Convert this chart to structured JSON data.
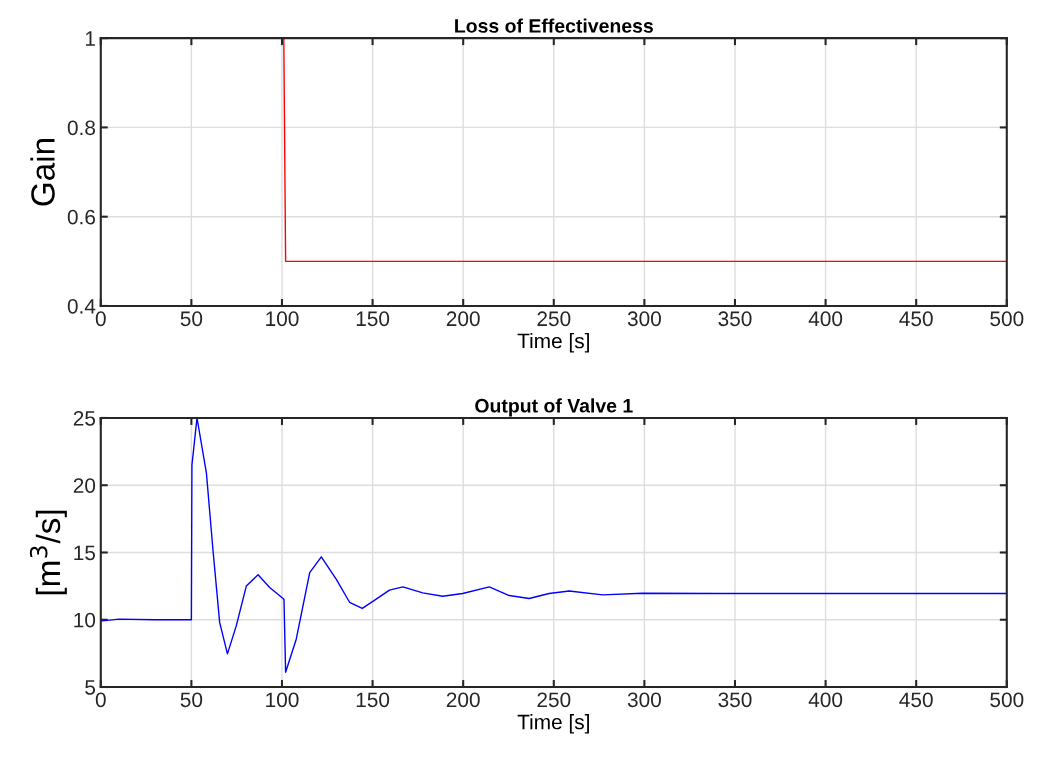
{
  "chart_data": [
    {
      "type": "line",
      "title": "Loss of Effectiveness",
      "xlabel": "Time [s]",
      "ylabel": "Gain",
      "xlim": [
        0,
        500
      ],
      "ylim": [
        0.4,
        1
      ],
      "xticks": [
        0,
        50,
        100,
        150,
        200,
        250,
        300,
        350,
        400,
        450,
        500
      ],
      "yticks": [
        0.4,
        0.6,
        0.8,
        1
      ],
      "grid": true,
      "series": [
        {
          "color": "#ff0000",
          "x": [
            0,
            101,
            102,
            500
          ],
          "values": [
            1,
            1,
            0.5,
            0.5
          ]
        }
      ]
    },
    {
      "type": "line",
      "title": "Output of Valve 1",
      "xlabel": "Time [s]",
      "ylabel": "[m$^{3}$/s]",
      "xlim": [
        0,
        500
      ],
      "ylim": [
        5,
        25
      ],
      "xticks": [
        0,
        50,
        100,
        150,
        200,
        250,
        300,
        350,
        400,
        450,
        500
      ],
      "yticks": [
        5,
        10,
        15,
        20,
        25
      ],
      "grid": true,
      "series": [
        {
          "color": "#0000ff",
          "x": [
            0,
            10,
            30,
            50,
            50.3,
            53.1,
            58.3,
            61.9,
            65.6,
            69.9,
            74.8,
            80.3,
            86.8,
            93.2,
            100.6,
            101.1,
            102,
            107.9,
            115.3,
            121.7,
            130,
            137.3,
            144.3,
            152,
            159.3,
            166.7,
            177.7,
            188.7,
            199.7,
            214.4,
            225.4,
            236.4,
            247.4,
            258.5,
            276.9,
            298.9,
            341,
            500
          ],
          "values": [
            9.9,
            10.05,
            10,
            10,
            21.5,
            25,
            20.9,
            15.2,
            9.8,
            7.46,
            9.56,
            12.5,
            13.35,
            12.4,
            11.58,
            11.5,
            6.1,
            8.57,
            13.5,
            14.68,
            13,
            11.3,
            10.84,
            11.53,
            12.2,
            12.44,
            12,
            11.75,
            11.95,
            12.44,
            11.8,
            11.58,
            11.95,
            12.14,
            11.85,
            11.97,
            11.95,
            11.95
          ]
        }
      ]
    }
  ]
}
